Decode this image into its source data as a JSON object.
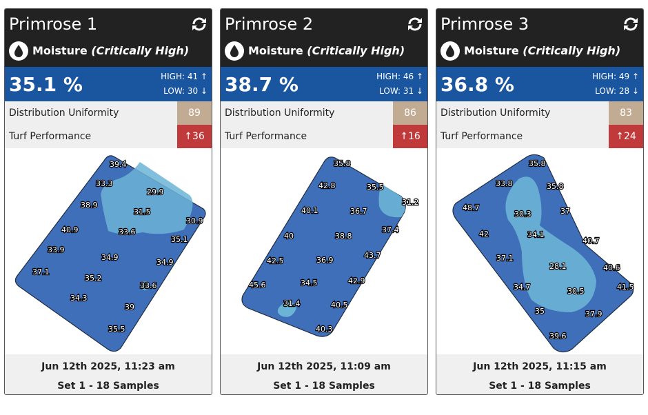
{
  "cards": [
    {
      "title": "Primrose 1",
      "metric": "Moisture",
      "status": "(Critically High)",
      "value": "35.1 %",
      "high": "HIGH: 41",
      "low": "LOW: 30",
      "du_label": "Distribution Uniformity",
      "du_value": "89",
      "tp_label": "Turf Performance",
      "tp_value": "36",
      "date": "Jun 12th 2025, 11:23 am",
      "samples": "Set 1 - 18 Samples",
      "points": [
        "39.4",
        "33.3",
        "29.9",
        "38.9",
        "31.5",
        "30.9",
        "40.9",
        "33.6",
        "35.1",
        "33.9",
        "34.9",
        "34.9",
        "37.1",
        "35.2",
        "33.6",
        "34.3",
        "39",
        "35.5"
      ]
    },
    {
      "title": "Primrose 2",
      "metric": "Moisture",
      "status": "(Critically High)",
      "value": "38.7 %",
      "high": "HIGH: 46",
      "low": "LOW: 31",
      "du_label": "Distribution Uniformity",
      "du_value": "86",
      "tp_label": "Turf Performance",
      "tp_value": "16",
      "date": "Jun 12th 2025, 11:09 am",
      "samples": "Set 1 - 18 Samples",
      "points": [
        "35.8",
        "42.8",
        "35.5",
        "31.2",
        "40.1",
        "36.7",
        "37.4",
        "40",
        "38.8",
        "42.5",
        "36.9",
        "43.7",
        "45.6",
        "34.5",
        "42.9",
        "31.4",
        "40.5",
        "40.3"
      ]
    },
    {
      "title": "Primrose 3",
      "metric": "Moisture",
      "status": "(Critically High)",
      "value": "36.8 %",
      "high": "HIGH: 49",
      "low": "LOW: 28",
      "du_label": "Distribution Uniformity",
      "du_value": "83",
      "tp_label": "Turf Performance",
      "tp_value": "24",
      "date": "Jun 12th 2025, 11:15 am",
      "samples": "Set 1 - 18 Samples",
      "points": [
        "35.8",
        "33.8",
        "35.8",
        "48.7",
        "30.3",
        "37",
        "42",
        "34.1",
        "40.7",
        "37.1",
        "28.1",
        "40.6",
        "34.7",
        "30.5",
        "41.5",
        "35",
        "37.9",
        "39.6"
      ]
    }
  ],
  "colors": {
    "header": "#222222",
    "value_bar": "#1a56a0",
    "du": "#c2ab93",
    "tp": "#c0393b",
    "map_dark": "#3f6fb8",
    "map_light": "#6cb4d6"
  },
  "icons": {
    "refresh": "refresh-icon",
    "drop": "water-drop-icon",
    "up": "arrow-up-icon",
    "down": "arrow-down-icon"
  }
}
